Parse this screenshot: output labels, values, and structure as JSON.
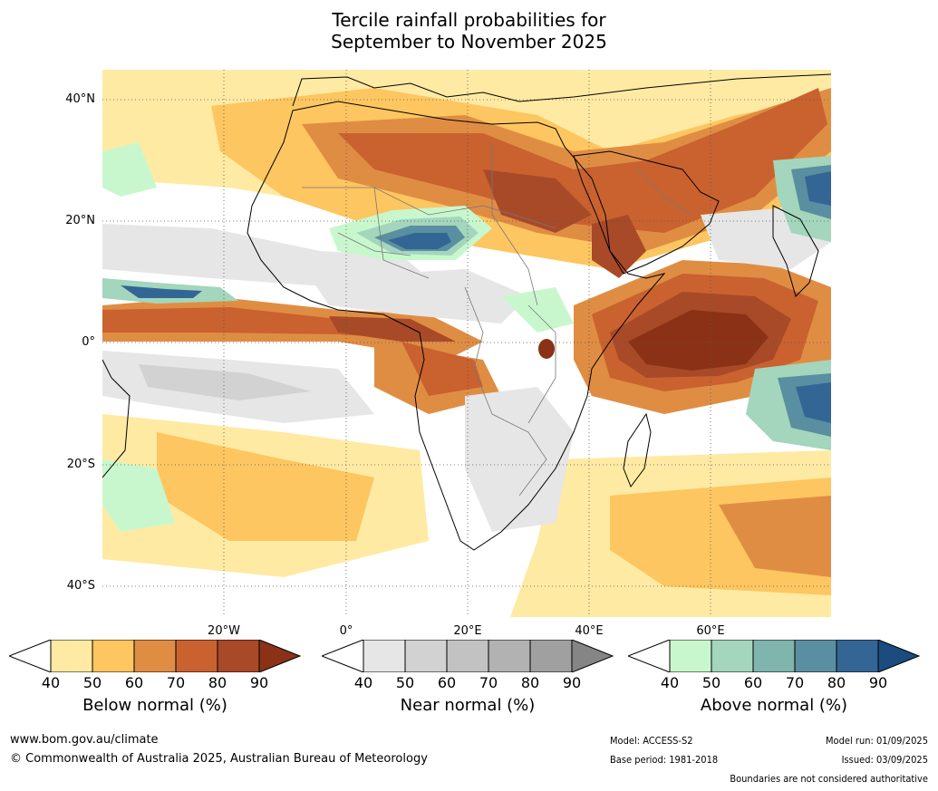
{
  "title_line1": "Tercile rainfall probabilities for",
  "title_line2": "September to November 2025",
  "lat_labels": [
    "40°N",
    "20°N",
    "0°",
    "20°S",
    "40°S"
  ],
  "lon_labels": [
    "20°W",
    "0°",
    "20°E",
    "40°E",
    "60°E"
  ],
  "colorbars": [
    {
      "title": "Below normal (%)",
      "ticks": [
        "40",
        "50",
        "60",
        "70",
        "80",
        "90"
      ],
      "colors": [
        "#ffffff",
        "#ffeaa3",
        "#fdc660",
        "#e08d44",
        "#c9622f",
        "#a84a28",
        "#8b3216"
      ]
    },
    {
      "title": "Near normal (%)",
      "ticks": [
        "40",
        "50",
        "60",
        "70",
        "80",
        "90"
      ],
      "colors": [
        "#ffffff",
        "#e6e6e6",
        "#d2d2d2",
        "#c2c2c2",
        "#b2b2b2",
        "#a0a0a0",
        "#858585"
      ]
    },
    {
      "title": "Above normal (%)",
      "ticks": [
        "40",
        "50",
        "60",
        "70",
        "80",
        "90"
      ],
      "colors": [
        "#ffffff",
        "#c9f7cd",
        "#a3d6bc",
        "#7fb5ac",
        "#5a8fa1",
        "#336695",
        "#1c4b7d"
      ]
    }
  ],
  "footer": {
    "website": "www.bom.gov.au/climate",
    "copyright": "© Commonwealth of Australia 2025, Australian Bureau of Meteorology",
    "model": "Model: ACCESS-S2",
    "base_period": "Base period: 1981-2018",
    "model_run": "Model run: 01/09/2025",
    "issued": "Issued: 03/09/2025",
    "disclaimer": "Boundaries are not considered authoritative"
  }
}
